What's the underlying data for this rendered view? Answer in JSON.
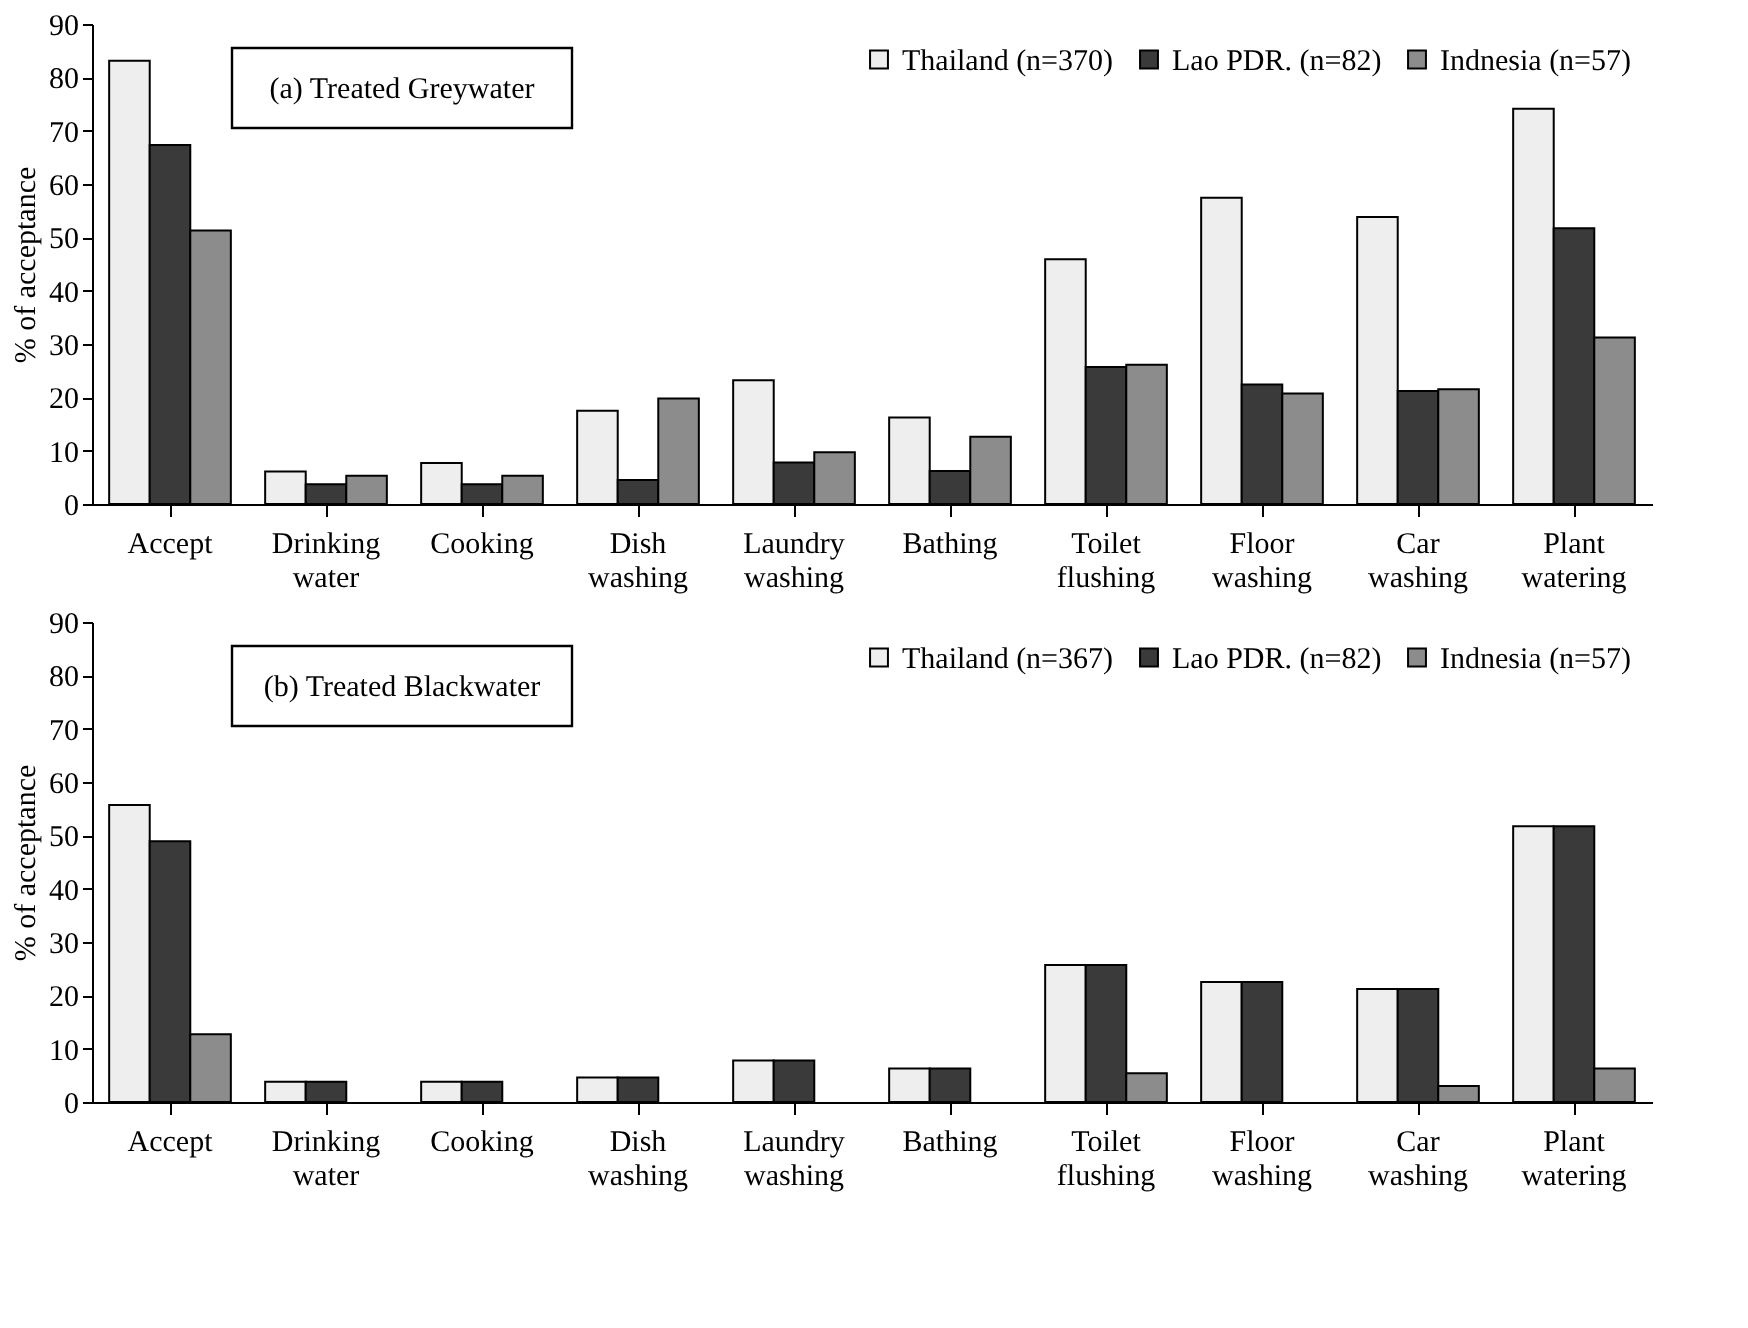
{
  "chart_data": [
    {
      "type": "bar",
      "title": "(a) Treated Greywater",
      "ylabel": "% of acceptance",
      "categories": [
        "Accept",
        "Drinking water",
        "Cooking",
        "Dish washing",
        "Laundry washing",
        "Bathing",
        "Toilet flushing",
        "Floor washing",
        "Car washing",
        "Plant watering"
      ],
      "series": [
        {
          "name": "Thailand (n=370)",
          "color": "#eeeeee",
          "values": [
            83.1,
            6.1,
            7.7,
            17.5,
            23.2,
            16.2,
            45.9,
            57.4,
            53.8,
            74.1
          ]
        },
        {
          "name": "Lao PDR. (n=82)",
          "color": "#3a3a3a",
          "values": [
            67.3,
            3.7,
            3.7,
            4.5,
            7.8,
            6.2,
            25.7,
            22.4,
            21.2,
            51.7
          ]
        },
        {
          "name": "Indnesia (n=57)",
          "color": "#8c8c8c",
          "values": [
            51.3,
            5.3,
            5.3,
            19.8,
            9.7,
            12.6,
            26.1,
            20.7,
            21.5,
            31.2
          ]
        }
      ],
      "ylim": [
        0,
        90
      ],
      "yticks": [
        0,
        10,
        20,
        30,
        40,
        50,
        60,
        70,
        80,
        90
      ],
      "legend": "top right",
      "grid": false
    },
    {
      "type": "bar",
      "title": "(b) Treated Blackwater",
      "ylabel": "% of acceptance",
      "categories": [
        "Accept",
        "Drinking water",
        "Cooking",
        "Dish washing",
        "Laundry washing",
        "Bathing",
        "Toilet flushing",
        "Floor washing",
        "Car washing",
        "Plant watering"
      ],
      "series": [
        {
          "name": "Thailand (n=367)",
          "color": "#eeeeee",
          "values": [
            55.7,
            3.8,
            3.8,
            4.6,
            7.8,
            6.3,
            25.7,
            22.5,
            21.2,
            51.7
          ]
        },
        {
          "name": "Lao PDR. (n=82)",
          "color": "#3a3a3a",
          "values": [
            48.9,
            3.8,
            3.8,
            4.6,
            7.8,
            6.3,
            25.7,
            22.5,
            21.2,
            51.7
          ]
        },
        {
          "name": "Indnesia (n=57)",
          "color": "#8c8c8c",
          "values": [
            12.7,
            null,
            null,
            null,
            null,
            null,
            5.4,
            null,
            3.0,
            6.3
          ]
        }
      ],
      "ylim": [
        0,
        90
      ],
      "yticks": [
        0,
        10,
        20,
        30,
        40,
        50,
        60,
        70,
        80,
        90
      ],
      "legend": "top right",
      "grid": false
    }
  ]
}
